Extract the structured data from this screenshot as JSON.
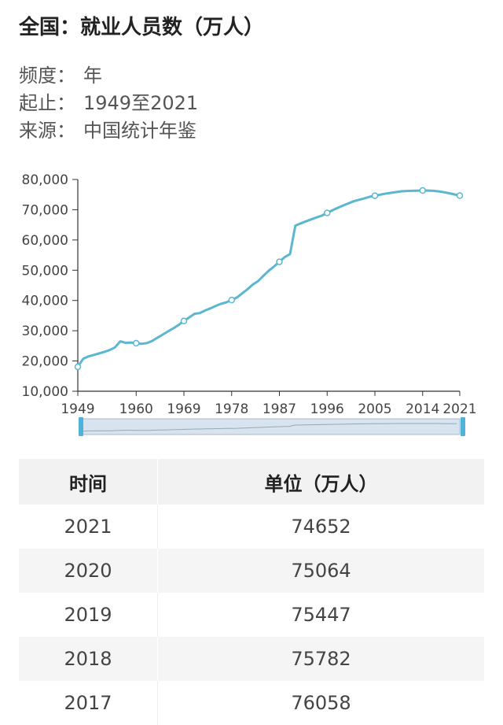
{
  "header": {
    "title": "全国：就业人员数（万人）",
    "meta": [
      {
        "key": "频度：",
        "value": "年"
      },
      {
        "key": "起止：",
        "value": "1949至2021"
      },
      {
        "key": "来源：",
        "value": "中国统计年鉴"
      }
    ]
  },
  "colors": {
    "line": "#5bb7cf",
    "axis": "#333333",
    "slider_fill": "#d7e3ef",
    "slider_handle": "#4fb2d8",
    "table_header_bg": "#f2f2f2",
    "table_alt_bg": "#f5f5f5"
  },
  "chart_data": {
    "type": "line",
    "title": "",
    "xlabel": "",
    "ylabel": "",
    "ylim": [
      10000,
      80000
    ],
    "xlim": [
      1949,
      2021
    ],
    "yticks": [
      10000,
      20000,
      30000,
      40000,
      50000,
      60000,
      70000,
      80000
    ],
    "ytick_labels": [
      "10,000",
      "20,000",
      "30,000",
      "40,000",
      "50,000",
      "60,000",
      "70,000",
      "80,000"
    ],
    "xticks": [
      1949,
      1960,
      1969,
      1978,
      1987,
      1996,
      2005,
      2014,
      2021
    ],
    "xtick_labels": [
      "1949",
      "1960",
      "1969",
      "1978",
      "1987",
      "1996",
      "2005",
      "2014",
      "2021"
    ],
    "marked_points": [
      1949,
      1960,
      1969,
      1978,
      1987,
      1996,
      2005,
      2014,
      2021
    ],
    "series": [
      {
        "name": "就业人员数（万人）",
        "x": [
          1949,
          1950,
          1951,
          1952,
          1953,
          1954,
          1955,
          1956,
          1957,
          1958,
          1959,
          1960,
          1961,
          1962,
          1963,
          1964,
          1965,
          1966,
          1967,
          1968,
          1969,
          1970,
          1971,
          1972,
          1973,
          1974,
          1975,
          1976,
          1977,
          1978,
          1979,
          1980,
          1981,
          1982,
          1983,
          1984,
          1985,
          1986,
          1987,
          1988,
          1989,
          1990,
          1991,
          1992,
          1993,
          1994,
          1995,
          1996,
          1997,
          1998,
          1999,
          2000,
          2001,
          2002,
          2003,
          2004,
          2005,
          2006,
          2007,
          2008,
          2009,
          2010,
          2011,
          2012,
          2013,
          2014,
          2015,
          2016,
          2017,
          2018,
          2019,
          2020,
          2021
        ],
        "values": [
          18082,
          20729,
          21500,
          22000,
          22500,
          23000,
          23600,
          24500,
          26500,
          26000,
          26100,
          25880,
          25700,
          25900,
          26600,
          27700,
          28700,
          29800,
          30800,
          31900,
          33225,
          34400,
          35600,
          35850,
          36700,
          37400,
          38200,
          38900,
          39400,
          40152,
          41000,
          42361,
          43725,
          45295,
          46436,
          48197,
          49873,
          51282,
          52783,
          54334,
          55329,
          64749,
          65491,
          66152,
          66808,
          67455,
          68065,
          68950,
          69820,
          70637,
          71394,
          72085,
          72797,
          73280,
          73736,
          74264,
          74647,
          74978,
          75321,
          75564,
          75828,
          76105,
          76196,
          76254,
          76301,
          76349,
          76320,
          76245,
          76058,
          75782,
          75447,
          75064,
          74652
        ]
      }
    ],
    "table": {
      "headers": [
        "时间",
        "单位（万人）"
      ],
      "rows": [
        [
          "2021",
          "74652"
        ],
        [
          "2020",
          "75064"
        ],
        [
          "2019",
          "75447"
        ],
        [
          "2018",
          "75782"
        ],
        [
          "2017",
          "76058"
        ]
      ]
    }
  }
}
